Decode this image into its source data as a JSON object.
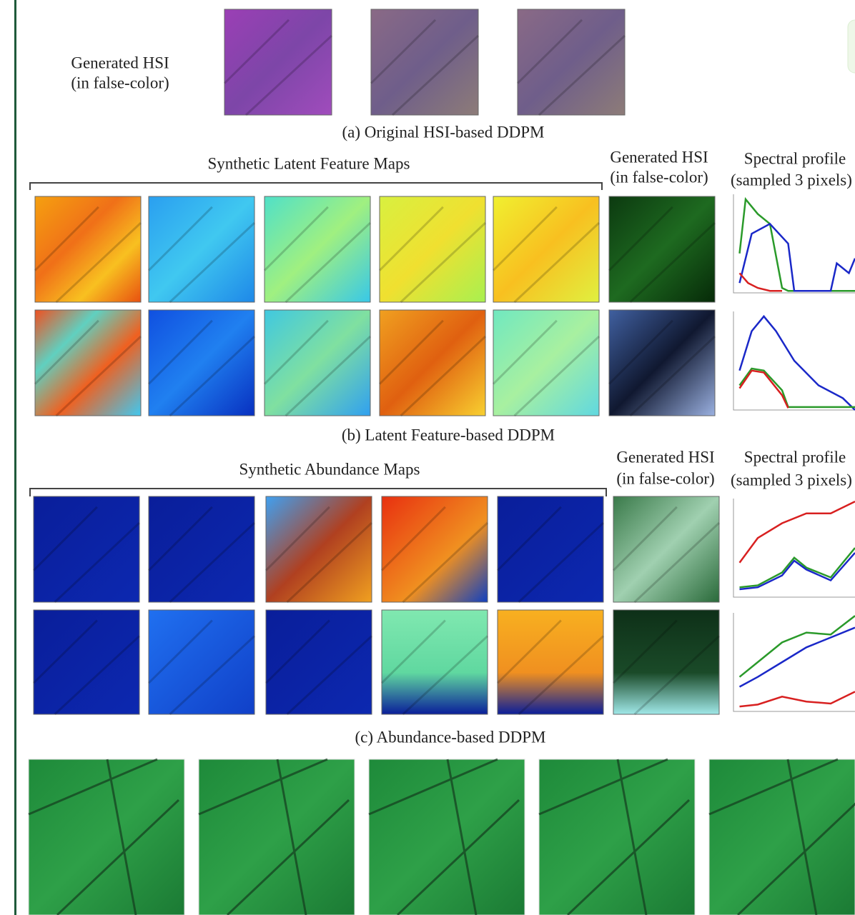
{
  "panel_a": {
    "row_label": [
      "Generated HSI",
      "(in false-color)"
    ],
    "caption": "(a) Original HSI-based DDPM"
  },
  "panel_b": {
    "group_label": "Synthetic Latent Feature Maps",
    "hsi_header": [
      "Generated HSI",
      "(in false-color)"
    ],
    "profile_header": [
      "Spectral profile",
      "(sampled 3 pixels)"
    ],
    "caption": "(b) Latent Feature-based DDPM"
  },
  "panel_c": {
    "group_label": "Synthetic Abundance Maps",
    "hsi_header": [
      "Generated HSI",
      "(in false-color)"
    ],
    "profile_header": [
      "Spectral profile",
      "(sampled 3 pixels)"
    ],
    "caption": "(c) Abundance-based DDPM"
  }
}
